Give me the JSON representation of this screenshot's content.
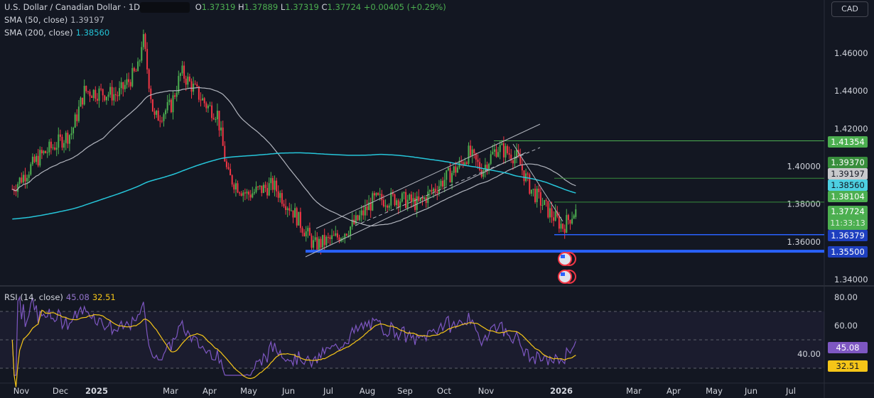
{
  "header": {
    "symbol": "U.S. Dollar / Canadian Dollar · 1D",
    "ohlc": {
      "o_label": "O",
      "o": "1.37319",
      "h_label": "H",
      "h": "1.37889",
      "l_label": "L",
      "l": "1.37319",
      "c_label": "C",
      "c": "1.37724",
      "change": "+0.00405 (+0.29%)"
    },
    "currency": "CAD"
  },
  "indicators": {
    "sma50": {
      "label": "SMA (50, close)",
      "value": "1.39197",
      "color": "#b2b5be"
    },
    "sma200": {
      "label": "SMA (200, close)",
      "value": "1.38560",
      "color": "#22c3d6"
    },
    "rsi": {
      "label": "RSI (14, close)",
      "value": "45.08",
      "ma_value": "32.51",
      "color": "#7e57c2",
      "ma_color": "#f5c518"
    }
  },
  "chart_data": [
    {
      "type": "candlestick",
      "title": "U.S. Dollar / Canadian Dollar · 1D",
      "ylim": [
        1.335,
        1.49
      ],
      "y_ticks": [
        "1.46000",
        "1.44000",
        "1.42000",
        "1.40000",
        "1.38000",
        "1.36000",
        "1.34000"
      ],
      "x_ticks": [
        "Nov",
        "Dec",
        "2025",
        "Mar",
        "Apr",
        "May",
        "Jun",
        "Jul",
        "Aug",
        "Sep",
        "Oct",
        "Nov",
        "2026",
        "Mar",
        "Apr",
        "May",
        "Jun",
        "Jul"
      ],
      "approx_close_path": [
        [
          "2024-10-25",
          1.388
        ],
        [
          "2024-11-15",
          1.405
        ],
        [
          "2024-12-10",
          1.418
        ],
        [
          "2024-12-20",
          1.44
        ],
        [
          "2025-01-15",
          1.438
        ],
        [
          "2025-01-31",
          1.452
        ],
        [
          "2025-02-03",
          1.47
        ],
        [
          "2025-02-12",
          1.425
        ],
        [
          "2025-02-25",
          1.432
        ],
        [
          "2025-03-05",
          1.45
        ],
        [
          "2025-03-25",
          1.432
        ],
        [
          "2025-04-02",
          1.428
        ],
        [
          "2025-04-10",
          1.395
        ],
        [
          "2025-04-25",
          1.385
        ],
        [
          "2025-05-15",
          1.39
        ],
        [
          "2025-05-30",
          1.377
        ],
        [
          "2025-06-16",
          1.358
        ],
        [
          "2025-07-03",
          1.362
        ],
        [
          "2025-07-18",
          1.37
        ],
        [
          "2025-08-01",
          1.382
        ],
        [
          "2025-08-20",
          1.383
        ],
        [
          "2025-09-05",
          1.38
        ],
        [
          "2025-09-25",
          1.393
        ],
        [
          "2025-10-06",
          1.4
        ],
        [
          "2025-10-14",
          1.407
        ],
        [
          "2025-10-24",
          1.398
        ],
        [
          "2025-11-05",
          1.41
        ],
        [
          "2025-11-20",
          1.405
        ],
        [
          "2025-12-01",
          1.388
        ],
        [
          "2025-12-15",
          1.376
        ],
        [
          "2025-12-26",
          1.368
        ],
        [
          "2026-01-05",
          1.37724
        ]
      ],
      "price_labels": [
        {
          "value": "1.41354",
          "color": "#4caf50"
        },
        {
          "value": "1.39370",
          "color": "#388e3c"
        },
        {
          "value": "1.39197",
          "color": "#b2b5be"
        },
        {
          "value": "1.38560",
          "color": "#4dd0e1"
        },
        {
          "value": "1.38104",
          "color": "#4caf50"
        },
        {
          "value": "1.37724",
          "countdown": "11:33:13",
          "color": "#4caf50"
        },
        {
          "value": "1.36379",
          "color": "#1e3fbf"
        },
        {
          "value": "1.35500",
          "color": "#1e3fbf"
        }
      ],
      "horizontal_levels": [
        1.41354,
        1.3937,
        1.38104,
        1.36379,
        1.355
      ],
      "up_color": "#4caf50",
      "down_color": "#f23645"
    },
    {
      "type": "line",
      "title": "RSI (14, close)",
      "ylim": [
        25,
        85
      ],
      "y_ticks": [
        "80.00",
        "60.00",
        "40.00"
      ],
      "bands": [
        30,
        50,
        70
      ],
      "last_values": {
        "rsi": 45.08,
        "rsi_ma": 32.51
      }
    }
  ]
}
